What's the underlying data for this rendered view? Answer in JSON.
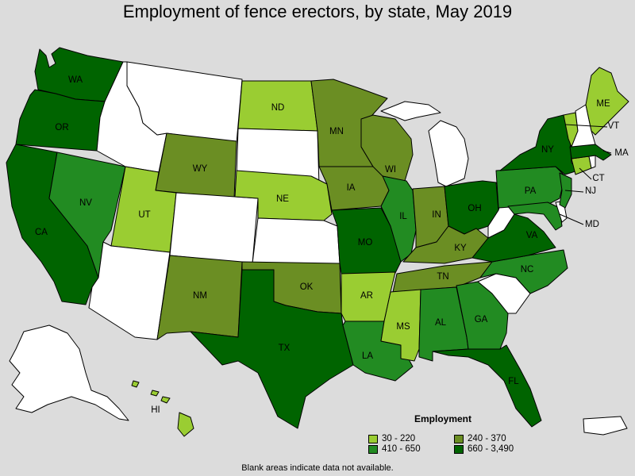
{
  "title": "Employment of fence erectors, by state, May 2019",
  "footnote": "Blank areas indicate data not available.",
  "colors": {
    "blank": "#ffffff",
    "c1": "#9acd32",
    "c2": "#6b8e23",
    "c3": "#228b22",
    "c4": "#006400"
  },
  "legend": {
    "title": "Employment",
    "items": [
      {
        "label": "30 - 220",
        "color": "#9acd32"
      },
      {
        "label": "240 - 370",
        "color": "#6b8e23"
      },
      {
        "label": "410 - 650",
        "color": "#228b22"
      },
      {
        "label": "660 - 3,490",
        "color": "#006400"
      }
    ]
  },
  "states": {
    "WA": {
      "label": "WA",
      "class": "660 - 3,490"
    },
    "OR": {
      "label": "OR",
      "class": "660 - 3,490"
    },
    "CA": {
      "label": "CA",
      "class": "660 - 3,490"
    },
    "NV": {
      "label": "NV",
      "class": "410 - 650"
    },
    "UT": {
      "label": "UT",
      "class": "30 - 220"
    },
    "WY": {
      "label": "WY",
      "class": "240 - 370"
    },
    "NM": {
      "label": "NM",
      "class": "240 - 370"
    },
    "TX": {
      "label": "TX",
      "class": "660 - 3,490"
    },
    "OK": {
      "label": "OK",
      "class": "240 - 370"
    },
    "NE": {
      "label": "NE",
      "class": "30 - 220"
    },
    "ND": {
      "label": "ND",
      "class": "30 - 220"
    },
    "MN": {
      "label": "MN",
      "class": "240 - 370"
    },
    "IA": {
      "label": "IA",
      "class": "240 - 370"
    },
    "MO": {
      "label": "MO",
      "class": "660 - 3,490"
    },
    "AR": {
      "label": "AR",
      "class": "30 - 220"
    },
    "LA": {
      "label": "LA",
      "class": "410 - 650"
    },
    "WI": {
      "label": "WI",
      "class": "240 - 370"
    },
    "IL": {
      "label": "IL",
      "class": "410 - 650"
    },
    "IN": {
      "label": "IN",
      "class": "240 - 370"
    },
    "OH": {
      "label": "OH",
      "class": "660 - 3,490"
    },
    "KY": {
      "label": "KY",
      "class": "240 - 370"
    },
    "TN": {
      "label": "TN",
      "class": "240 - 370"
    },
    "MS": {
      "label": "MS",
      "class": "30 - 220"
    },
    "AL": {
      "label": "AL",
      "class": "410 - 650"
    },
    "GA": {
      "label": "GA",
      "class": "410 - 650"
    },
    "FL": {
      "label": "FL",
      "class": "660 - 3,490"
    },
    "NC": {
      "label": "NC",
      "class": "410 - 650"
    },
    "VA": {
      "label": "VA",
      "class": "660 - 3,490"
    },
    "PA": {
      "label": "PA",
      "class": "410 - 650"
    },
    "NY": {
      "label": "NY",
      "class": "660 - 3,490"
    },
    "NJ": {
      "label": "NJ",
      "class": "410 - 650"
    },
    "MD": {
      "label": "MD",
      "class": "410 - 650"
    },
    "CT": {
      "label": "CT",
      "class": "30 - 220"
    },
    "MA": {
      "label": "MA",
      "class": "660 - 3,490"
    },
    "VT": {
      "label": "VT",
      "class": "30 - 220"
    },
    "ME": {
      "label": "ME",
      "class": "30 - 220"
    },
    "NH": {
      "label": "NH",
      "class": "blank"
    },
    "HI": {
      "label": "HI",
      "class": "30 - 220"
    },
    "AK": {
      "label": "",
      "class": "blank"
    },
    "ID": {
      "label": "",
      "class": "blank"
    },
    "MT": {
      "label": "",
      "class": "blank"
    },
    "SD": {
      "label": "",
      "class": "blank"
    },
    "CO": {
      "label": "",
      "class": "blank"
    },
    "KS": {
      "label": "",
      "class": "blank"
    },
    "AZ": {
      "label": "",
      "class": "blank"
    },
    "MI": {
      "label": "",
      "class": "blank"
    },
    "WV": {
      "label": "",
      "class": "blank"
    },
    "SC": {
      "label": "",
      "class": "blank"
    },
    "RI": {
      "label": "",
      "class": "blank"
    },
    "DE": {
      "label": "",
      "class": "blank"
    },
    "PR": {
      "label": "",
      "class": "blank"
    }
  }
}
